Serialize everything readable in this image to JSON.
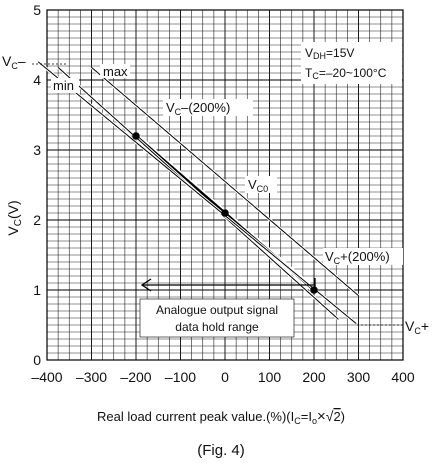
{
  "chart_data": {
    "type": "line",
    "title": "",
    "xlabel_prefix": "Real load current peak value.(%)(I",
    "xlabel_sub1": "C",
    "xlabel_mid": "=I",
    "xlabel_sub2": "o",
    "xlabel_times": "×",
    "xlabel_sqrt": "√",
    "xlabel_two": "2",
    "xlabel_close": ")",
    "ylabel_main": "V",
    "ylabel_sub": "C",
    "ylabel_unit": "(V)",
    "xlim": [
      -400,
      400
    ],
    "ylim": [
      0,
      5
    ],
    "x_ticks": [
      "-400",
      "-300",
      "-200",
      "-100",
      "0",
      "100",
      "200",
      "300",
      "400"
    ],
    "y_ticks": [
      "0",
      "1",
      "2",
      "3",
      "4",
      "5"
    ],
    "grid": true,
    "series": [
      {
        "name": "",
        "style": "thick",
        "x": [
          -200,
          0,
          200
        ],
        "y": [
          3.2,
          2.1,
          1.0
        ]
      },
      {
        "name": "max",
        "style": "thin",
        "x": [
          -300,
          300
        ],
        "y": [
          4.18,
          0.92
        ]
      },
      {
        "name": "min",
        "style": "thin",
        "x": [
          -375,
          255
        ],
        "y": [
          4.18,
          0.58
        ]
      },
      {
        "name": "",
        "style": "thin",
        "x": [
          -420,
          295
        ],
        "y": [
          4.26,
          0.52
        ]
      }
    ],
    "points": [
      {
        "x": -200,
        "y": 3.2
      },
      {
        "x": 0,
        "y": 2.1
      },
      {
        "x": 200,
        "y": 1.0
      }
    ],
    "annotations": {
      "vc_minus_main": "V",
      "vc_minus_sub": "C",
      "vc_minus_sign": "–",
      "vc_plus_main": "V",
      "vc_plus_sub": "C",
      "vc_plus_sign": "+",
      "max_label": "max",
      "min_label": "min",
      "vc_200_neg_main": "V",
      "vc_200_neg_sub": "C",
      "vc_200_neg_rest": "–(200%)",
      "vc_200_pos_main": "V",
      "vc_200_pos_sub": "C",
      "vc_200_pos_rest": "+(200%)",
      "vc0_main": "V",
      "vc0_sub": "C0",
      "cond1_main": "V",
      "cond1_sub": "DH",
      "cond1_rest": "=15V",
      "cond2_main": "T",
      "cond2_sub": "C",
      "cond2_rest": "=–20~100°C",
      "range_line1": "Analogue output signal",
      "range_line2": "data hold range"
    },
    "caption": "(Fig. 4)"
  }
}
